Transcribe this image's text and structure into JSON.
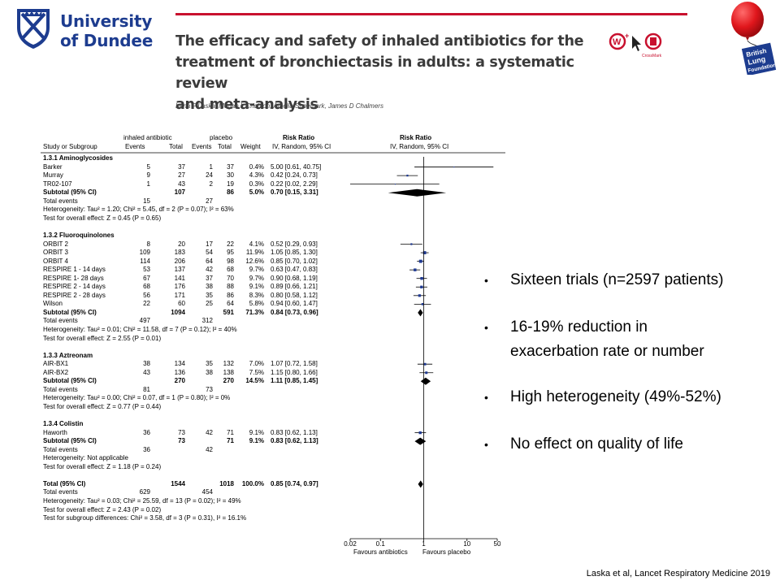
{
  "logos": {
    "university_line1": "University",
    "university_line2": "of Dundee",
    "blf_line1": "British",
    "blf_line2": "Lung",
    "blf_line3": "Foundation",
    "crossmark_label": "CrossMark"
  },
  "paper": {
    "title_lines": [
      "The efficacy and safety of inhaled antibiotics for the",
      "treatment of bronchiectasis in adults: a systematic review",
      "and meta-analysis"
    ],
    "authors": "Irena F Laska, Megan L Crichton, Amelia Shoemark, James D Chalmers"
  },
  "bullets": [
    {
      "text": "Sixteen trials (n=2597 patients)"
    },
    {
      "text": "16-19% reduction in",
      "text2": "exacerbation rate or number"
    },
    {
      "text": "High heterogeneity (49%-52%)"
    },
    {
      "text": "No effect on quality of life"
    }
  ],
  "citation": "Laska et al, Lancet Respiratory Medicine 2019",
  "colors": {
    "uni_blue": "#1d3c8f",
    "red_rule": "#c8102e",
    "marker": "#1f3a93"
  },
  "chart_data": {
    "type": "forest",
    "headers": {
      "group1": "inhaled antibiotic",
      "group2": "placebo",
      "risk_ratio": "Risk Ratio",
      "risk_ratio_right": "Risk Ratio",
      "method": "IV, Random, 95% CI",
      "method_right": "IV, Random, 95% CI",
      "study": "Study or Subgroup",
      "events": "Events",
      "total": "Total",
      "weight": "Weight"
    },
    "x_scale": "log",
    "x_ticks": [
      {
        "label": "0.02",
        "value": 0.02
      },
      {
        "label": "0.1",
        "value": 0.1
      },
      {
        "label": "1",
        "value": 1
      },
      {
        "label": "10",
        "value": 10
      },
      {
        "label": "50",
        "value": 50
      }
    ],
    "x_label_left": "Favours antibiotics",
    "x_label_right": "Favours placebo",
    "rows": [
      {
        "kind": "group",
        "label": "1.3.1 Aminoglycosides"
      },
      {
        "kind": "study",
        "label": "Barker",
        "e1": "5",
        "t1": "37",
        "e2": "1",
        "t2": "37",
        "w": "0.4%",
        "ci": "5.00 [0.61, 40.75]",
        "rr": 5.0,
        "lo": 0.61,
        "hi": 40.75
      },
      {
        "kind": "study",
        "label": "Murray",
        "e1": "9",
        "t1": "27",
        "e2": "24",
        "t2": "30",
        "w": "4.3%",
        "ci": "0.42 [0.24, 0.73]",
        "rr": 0.42,
        "lo": 0.24,
        "hi": 0.73
      },
      {
        "kind": "study",
        "label": "TR02-107",
        "e1": "1",
        "t1": "43",
        "e2": "2",
        "t2": "19",
        "w": "0.3%",
        "ci": "0.22 [0.02, 2.29]",
        "rr": 0.22,
        "lo": 0.02,
        "hi": 2.29
      },
      {
        "kind": "subtotal",
        "label": "Subtotal (95% CI)",
        "t1": "107",
        "t2": "86",
        "w": "5.0%",
        "ci": "0.70 [0.15, 3.31]",
        "rr": 0.7,
        "lo": 0.15,
        "hi": 3.31
      },
      {
        "kind": "events",
        "label": "Total events",
        "e1": "15",
        "e2": "27"
      },
      {
        "kind": "note",
        "label": "Heterogeneity: Tau² = 1.20; Chi² = 5.45, df = 2 (P = 0.07); I² = 63%"
      },
      {
        "kind": "note",
        "label": "Test for overall effect: Z = 0.45 (P = 0.65)"
      },
      {
        "kind": "blank"
      },
      {
        "kind": "group",
        "label": "1.3.2 Fluoroquinolones"
      },
      {
        "kind": "study",
        "label": "ORBIT 2",
        "e1": "8",
        "t1": "20",
        "e2": "17",
        "t2": "22",
        "w": "4.1%",
        "ci": "0.52 [0.29, 0.93]",
        "rr": 0.52,
        "lo": 0.29,
        "hi": 0.93
      },
      {
        "kind": "study",
        "label": "ORBIT 3",
        "e1": "109",
        "t1": "183",
        "e2": "54",
        "t2": "95",
        "w": "11.9%",
        "ci": "1.05 [0.85, 1.30]",
        "rr": 1.05,
        "lo": 0.85,
        "hi": 1.3
      },
      {
        "kind": "study",
        "label": "ORBIT 4",
        "e1": "114",
        "t1": "206",
        "e2": "64",
        "t2": "98",
        "w": "12.6%",
        "ci": "0.85 [0.70, 1.02]",
        "rr": 0.85,
        "lo": 0.7,
        "hi": 1.02
      },
      {
        "kind": "study",
        "label": "RESPIRE 1 - 14 days",
        "e1": "53",
        "t1": "137",
        "e2": "42",
        "t2": "68",
        "w": "9.7%",
        "ci": "0.63 [0.47, 0.83]",
        "rr": 0.63,
        "lo": 0.47,
        "hi": 0.83
      },
      {
        "kind": "study",
        "label": "RESPIRE 1- 28 days",
        "e1": "67",
        "t1": "141",
        "e2": "37",
        "t2": "70",
        "w": "9.7%",
        "ci": "0.90 [0.68, 1.19]",
        "rr": 0.9,
        "lo": 0.68,
        "hi": 1.19
      },
      {
        "kind": "study",
        "label": "RESPIRE 2 - 14 days",
        "e1": "68",
        "t1": "176",
        "e2": "38",
        "t2": "88",
        "w": "9.1%",
        "ci": "0.89 [0.66, 1.21]",
        "rr": 0.89,
        "lo": 0.66,
        "hi": 1.21
      },
      {
        "kind": "study",
        "label": "RESPIRE 2 - 28 days",
        "e1": "56",
        "t1": "171",
        "e2": "35",
        "t2": "86",
        "w": "8.3%",
        "ci": "0.80 [0.58, 1.12]",
        "rr": 0.8,
        "lo": 0.58,
        "hi": 1.12
      },
      {
        "kind": "study",
        "label": "Wilson",
        "e1": "22",
        "t1": "60",
        "e2": "25",
        "t2": "64",
        "w": "5.8%",
        "ci": "0.94 [0.60, 1.47]",
        "rr": 0.94,
        "lo": 0.6,
        "hi": 1.47
      },
      {
        "kind": "subtotal",
        "label": "Subtotal (95% CI)",
        "t1": "1094",
        "t2": "591",
        "w": "71.3%",
        "ci": "0.84 [0.73, 0.96]",
        "rr": 0.84,
        "lo": 0.73,
        "hi": 0.96
      },
      {
        "kind": "events",
        "label": "Total events",
        "e1": "497",
        "e2": "312"
      },
      {
        "kind": "note",
        "label": "Heterogeneity: Tau² = 0.01; Chi² = 11.58, df = 7 (P = 0.12); I² = 40%"
      },
      {
        "kind": "note",
        "label": "Test for overall effect: Z = 2.55 (P = 0.01)"
      },
      {
        "kind": "blank"
      },
      {
        "kind": "group",
        "label": "1.3.3 Aztreonam"
      },
      {
        "kind": "study",
        "label": "AIR-BX1",
        "e1": "38",
        "t1": "134",
        "e2": "35",
        "t2": "132",
        "w": "7.0%",
        "ci": "1.07 [0.72, 1.58]",
        "rr": 1.07,
        "lo": 0.72,
        "hi": 1.58
      },
      {
        "kind": "study",
        "label": "AIR-BX2",
        "e1": "43",
        "t1": "136",
        "e2": "38",
        "t2": "138",
        "w": "7.5%",
        "ci": "1.15 [0.80, 1.66]",
        "rr": 1.15,
        "lo": 0.8,
        "hi": 1.66
      },
      {
        "kind": "subtotal",
        "label": "Subtotal (95% CI)",
        "t1": "270",
        "t2": "270",
        "w": "14.5%",
        "ci": "1.11 [0.85, 1.45]",
        "rr": 1.11,
        "lo": 0.85,
        "hi": 1.45
      },
      {
        "kind": "events",
        "label": "Total events",
        "e1": "81",
        "e2": "73"
      },
      {
        "kind": "note",
        "label": "Heterogeneity: Tau² = 0.00; Chi² = 0.07, df = 1 (P = 0.80); I² = 0%"
      },
      {
        "kind": "note",
        "label": "Test for overall effect: Z = 0.77 (P = 0.44)"
      },
      {
        "kind": "blank"
      },
      {
        "kind": "group",
        "label": "1.3.4 Colistin"
      },
      {
        "kind": "study",
        "label": "Haworth",
        "e1": "36",
        "t1": "73",
        "e2": "42",
        "t2": "71",
        "w": "9.1%",
        "ci": "0.83 [0.62, 1.13]",
        "rr": 0.83,
        "lo": 0.62,
        "hi": 1.13
      },
      {
        "kind": "subtotal",
        "label": "Subtotal (95% CI)",
        "t1": "73",
        "t2": "71",
        "w": "9.1%",
        "ci": "0.83 [0.62, 1.13]",
        "rr": 0.83,
        "lo": 0.62,
        "hi": 1.13
      },
      {
        "kind": "events",
        "label": "Total events",
        "e1": "36",
        "e2": "42"
      },
      {
        "kind": "note",
        "label": "Heterogeneity: Not applicable"
      },
      {
        "kind": "note",
        "label": "Test for overall effect: Z = 1.18 (P = 0.24)"
      },
      {
        "kind": "blank"
      },
      {
        "kind": "total",
        "label": "Total (95% CI)",
        "t1": "1544",
        "t2": "1018",
        "w": "100.0%",
        "ci": "0.85 [0.74, 0.97]",
        "rr": 0.85,
        "lo": 0.74,
        "hi": 0.97
      },
      {
        "kind": "events",
        "label": "Total events",
        "e1": "629",
        "e2": "454"
      },
      {
        "kind": "note",
        "label": "Heterogeneity: Tau² = 0.03; Chi² = 25.59, df = 13 (P = 0.02); I² = 49%"
      },
      {
        "kind": "note",
        "label": "Test for overall effect: Z = 2.43 (P = 0.02)"
      },
      {
        "kind": "note",
        "label": "Test for subgroup differences: Chi² = 3.58, df = 3 (P = 0.31), I² = 16.1%"
      }
    ]
  }
}
